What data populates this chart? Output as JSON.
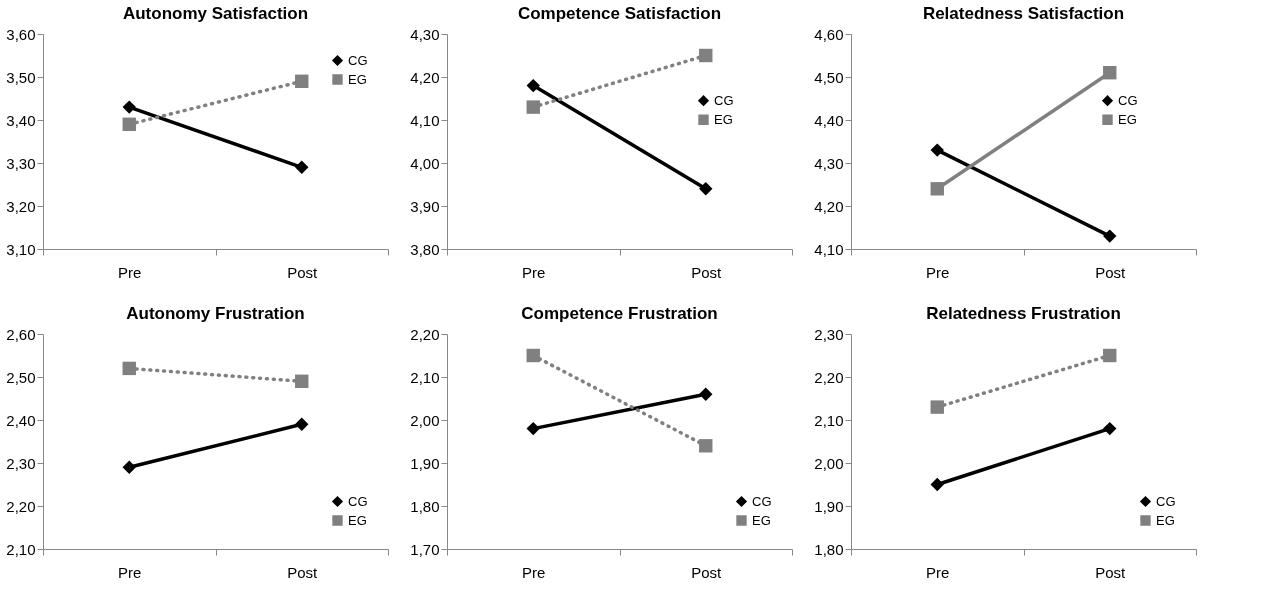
{
  "chart_data": [
    {
      "type": "line",
      "title": "Autonomy Satisfaction",
      "categories": [
        "Pre",
        "Post"
      ],
      "ylim": [
        3.1,
        3.6
      ],
      "yticks": [
        {
          "value": 3.1,
          "label": "3,10"
        },
        {
          "value": 3.2,
          "label": "3,20"
        },
        {
          "value": 3.3,
          "label": "3,30"
        },
        {
          "value": 3.4,
          "label": "3,40"
        },
        {
          "value": 3.5,
          "label": "3,50"
        },
        {
          "value": 3.6,
          "label": "3,60"
        }
      ],
      "grid": false,
      "legend": "top right",
      "series": [
        {
          "name": "CG",
          "color": "#000000",
          "values": [
            3.43,
            3.29
          ],
          "marker": "diamond",
          "line_style": "solid"
        },
        {
          "name": "EG",
          "color": "#808080",
          "values": [
            3.39,
            3.49
          ],
          "marker": "square",
          "line_style": "dotted"
        }
      ]
    },
    {
      "type": "line",
      "title": "Competence Satisfaction",
      "categories": [
        "Pre",
        "Post"
      ],
      "ylim": [
        3.8,
        4.3
      ],
      "yticks": [
        {
          "value": 3.8,
          "label": "3,80"
        },
        {
          "value": 3.9,
          "label": "3,90"
        },
        {
          "value": 4.0,
          "label": "4,00"
        },
        {
          "value": 4.1,
          "label": "4,10"
        },
        {
          "value": 4.2,
          "label": "4,20"
        },
        {
          "value": 4.3,
          "label": "4,30"
        }
      ],
      "grid": false,
      "legend": "right",
      "series": [
        {
          "name": "CG",
          "color": "#000000",
          "values": [
            4.18,
            3.94
          ],
          "marker": "diamond",
          "line_style": "solid"
        },
        {
          "name": "EG",
          "color": "#808080",
          "values": [
            4.13,
            4.25
          ],
          "marker": "square",
          "line_style": "dotted"
        }
      ]
    },
    {
      "type": "line",
      "title": "Relatedness Satisfaction",
      "categories": [
        "Pre",
        "Post"
      ],
      "ylim": [
        4.1,
        4.6
      ],
      "yticks": [
        {
          "value": 4.1,
          "label": "4,10"
        },
        {
          "value": 4.2,
          "label": "4,20"
        },
        {
          "value": 4.3,
          "label": "4,30"
        },
        {
          "value": 4.4,
          "label": "4,40"
        },
        {
          "value": 4.5,
          "label": "4,50"
        },
        {
          "value": 4.6,
          "label": "4,60"
        }
      ],
      "grid": false,
      "legend": "right",
      "series": [
        {
          "name": "CG",
          "color": "#000000",
          "values": [
            4.33,
            4.13
          ],
          "marker": "diamond",
          "line_style": "solid"
        },
        {
          "name": "EG",
          "color": "#808080",
          "values": [
            4.24,
            4.51
          ],
          "marker": "square",
          "line_style": "solid"
        }
      ]
    },
    {
      "type": "line",
      "title": "Autonomy Frustration",
      "categories": [
        "Pre",
        "Post"
      ],
      "ylim": [
        2.1,
        2.6
      ],
      "yticks": [
        {
          "value": 2.1,
          "label": "2,10"
        },
        {
          "value": 2.2,
          "label": "2,20"
        },
        {
          "value": 2.3,
          "label": "2,30"
        },
        {
          "value": 2.4,
          "label": "2,40"
        },
        {
          "value": 2.5,
          "label": "2,50"
        },
        {
          "value": 2.6,
          "label": "2,60"
        }
      ],
      "grid": false,
      "legend": "bottom right",
      "series": [
        {
          "name": "CG",
          "color": "#000000",
          "values": [
            2.29,
            2.39
          ],
          "marker": "diamond",
          "line_style": "solid"
        },
        {
          "name": "EG",
          "color": "#808080",
          "values": [
            2.52,
            2.49
          ],
          "marker": "square",
          "line_style": "dotted"
        }
      ]
    },
    {
      "type": "line",
      "title": "Competence Frustration",
      "categories": [
        "Pre",
        "Post"
      ],
      "ylim": [
        1.7,
        2.2
      ],
      "yticks": [
        {
          "value": 1.7,
          "label": "1,70"
        },
        {
          "value": 1.8,
          "label": "1,80"
        },
        {
          "value": 1.9,
          "label": "1,90"
        },
        {
          "value": 2.0,
          "label": "2,00"
        },
        {
          "value": 2.1,
          "label": "2,10"
        },
        {
          "value": 2.2,
          "label": "2,20"
        }
      ],
      "grid": false,
      "legend": "bottom right",
      "series": [
        {
          "name": "CG",
          "color": "#000000",
          "values": [
            1.98,
            2.06
          ],
          "marker": "diamond",
          "line_style": "solid"
        },
        {
          "name": "EG",
          "color": "#808080",
          "values": [
            2.15,
            1.94
          ],
          "marker": "square",
          "line_style": "dotted"
        }
      ]
    },
    {
      "type": "line",
      "title": "Relatedness Frustration",
      "categories": [
        "Pre",
        "Post"
      ],
      "ylim": [
        1.8,
        2.3
      ],
      "yticks": [
        {
          "value": 1.8,
          "label": "1,80"
        },
        {
          "value": 1.9,
          "label": "1,90"
        },
        {
          "value": 2.0,
          "label": "2,00"
        },
        {
          "value": 2.1,
          "label": "2,10"
        },
        {
          "value": 2.2,
          "label": "2,20"
        },
        {
          "value": 2.3,
          "label": "2,30"
        }
      ],
      "grid": false,
      "legend": "bottom right",
      "series": [
        {
          "name": "CG",
          "color": "#000000",
          "values": [
            1.95,
            2.08
          ],
          "marker": "diamond",
          "line_style": "solid"
        },
        {
          "name": "EG",
          "color": "#808080",
          "values": [
            2.13,
            2.25
          ],
          "marker": "square",
          "line_style": "dotted"
        }
      ]
    }
  ]
}
